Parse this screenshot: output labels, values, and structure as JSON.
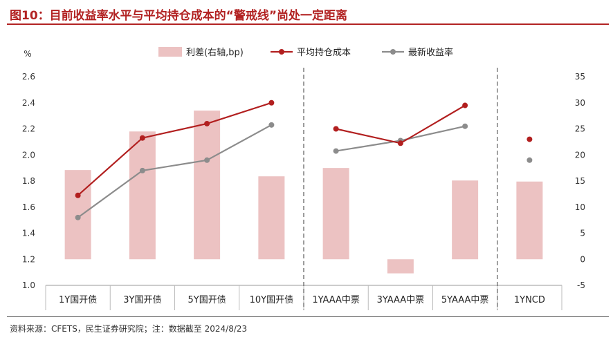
{
  "header": {
    "title": "图10：目前收益率水平与平均持仓成本的“警戒线”尚处一定距离"
  },
  "footer": {
    "source": "资料来源：CFETS，民生证券研究院；注：数据截至 2024/8/23"
  },
  "colors": {
    "title": "#b22222",
    "bar": "#ecc2c2",
    "cost_line": "#b21f1f",
    "yield_line": "#8c8c8c",
    "divider": "#666666"
  },
  "chart_data": {
    "type": "bar+line",
    "categories": [
      "1Y国开债",
      "3Y国开债",
      "5Y国开债",
      "10Y国开债",
      "1YAAA中票",
      "3YAAA中票",
      "5YAAA中票",
      "1YNCD"
    ],
    "groups": [
      [
        0,
        3
      ],
      [
        4,
        6
      ],
      [
        7,
        7
      ]
    ],
    "left_axis": {
      "unit": "%",
      "ylim": [
        1.0,
        2.6
      ],
      "ticks": [
        "1.0",
        "1.2",
        "1.4",
        "1.6",
        "1.8",
        "2.0",
        "2.2",
        "2.4",
        "2.6"
      ]
    },
    "right_axis": {
      "ylim": [
        -5,
        35
      ],
      "ticks": [
        "-5",
        "0",
        "5",
        "10",
        "15",
        "20",
        "25",
        "30",
        "35"
      ]
    },
    "legend": {
      "position": "top-center"
    },
    "series": [
      {
        "name": "利差(右轴,bp)",
        "kind": "bar",
        "axis": "right",
        "values": [
          17.1,
          24.5,
          28.5,
          15.9,
          17.5,
          -2.7,
          15.1,
          14.9
        ]
      },
      {
        "name": "平均持仓成本",
        "kind": "line",
        "axis": "left",
        "values": [
          1.69,
          2.13,
          2.24,
          2.4,
          2.2,
          2.09,
          2.38,
          2.12
        ],
        "line_segments": [
          [
            0,
            3
          ],
          [
            4,
            6
          ]
        ]
      },
      {
        "name": "最新收益率",
        "kind": "line",
        "axis": "left",
        "values": [
          1.52,
          1.88,
          1.96,
          2.23,
          2.03,
          2.11,
          2.22,
          1.96
        ],
        "line_segments": [
          [
            0,
            3
          ],
          [
            4,
            6
          ]
        ]
      }
    ]
  }
}
